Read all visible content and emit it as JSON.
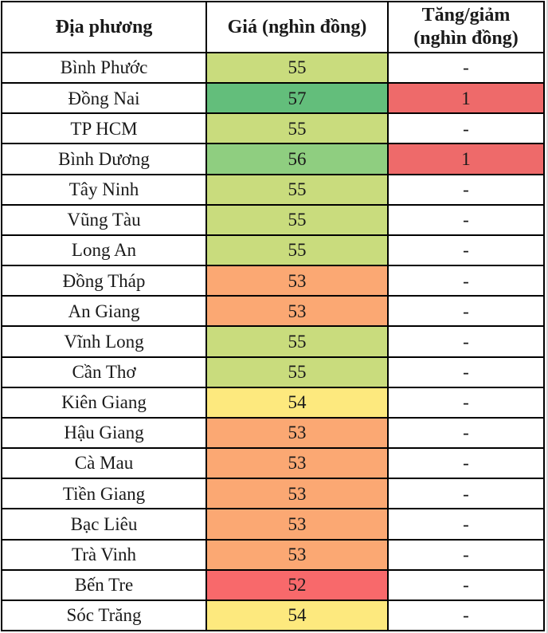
{
  "chart_data": {
    "type": "table",
    "columns": [
      {
        "label": "Địa phương"
      },
      {
        "label": "Giá (nghìn đồng)"
      },
      {
        "label": "Tăng/giảm (nghìn đồng)"
      }
    ],
    "rows": [
      {
        "province": "Bình Phước",
        "price": 55,
        "change": "-"
      },
      {
        "province": "Đồng Nai",
        "price": 57,
        "change": "1"
      },
      {
        "province": "TP HCM",
        "price": 55,
        "change": "-"
      },
      {
        "province": "Bình Dương",
        "price": 56,
        "change": "1"
      },
      {
        "province": "Tây Ninh",
        "price": 55,
        "change": "-"
      },
      {
        "province": "Vũng Tàu",
        "price": 55,
        "change": "-"
      },
      {
        "province": "Long An",
        "price": 55,
        "change": "-"
      },
      {
        "province": "Đồng Tháp",
        "price": 53,
        "change": "-"
      },
      {
        "province": "An Giang",
        "price": 53,
        "change": "-"
      },
      {
        "province": "Vĩnh Long",
        "price": 55,
        "change": "-"
      },
      {
        "province": "Cần Thơ",
        "price": 55,
        "change": "-"
      },
      {
        "province": "Kiên Giang",
        "price": 54,
        "change": "-"
      },
      {
        "province": "Hậu Giang",
        "price": 53,
        "change": "-"
      },
      {
        "province": "Cà Mau",
        "price": 53,
        "change": "-"
      },
      {
        "province": "Tiền Giang",
        "price": 53,
        "change": "-"
      },
      {
        "province": "Bạc Liêu",
        "price": 53,
        "change": "-"
      },
      {
        "province": "Trà Vinh",
        "price": 53,
        "change": "-"
      },
      {
        "province": "Bến Tre",
        "price": 52,
        "change": "-"
      },
      {
        "province": "Sóc Trăng",
        "price": 54,
        "change": "-"
      }
    ],
    "colors": {
      "price_scale": {
        "52": "#F8696B",
        "53": "#FBA873",
        "54": "#FDE97E",
        "55": "#C9DC7D",
        "56": "#8FCE80",
        "57": "#63BE7B"
      },
      "change_highlight": "#EE6A6A",
      "row_background": "#FFFFFF",
      "border": "#000000",
      "text": "#1A1A1A",
      "right_edge_line": "#D9D9D9"
    },
    "no_change_symbol": "-"
  }
}
